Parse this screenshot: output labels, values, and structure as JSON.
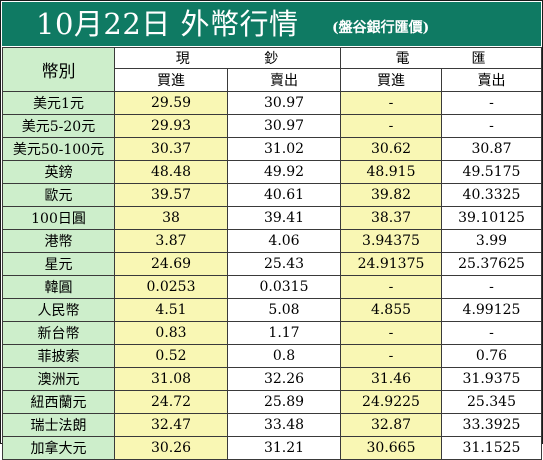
{
  "title": "10月22日 外幣行情",
  "subtitle": "(盤谷銀行匯價)",
  "headers": {
    "currency": "幣別",
    "cash": [
      "現",
      "鈔"
    ],
    "spot": [
      "電",
      "匯"
    ],
    "buy": "買進",
    "sell": "賣出"
  },
  "rows": [
    {
      "name": "美元1元",
      "cash_buy": "29.59",
      "cash_sell": "30.97",
      "spot_buy": "-",
      "spot_sell": "-"
    },
    {
      "name": "美元5-20元",
      "cash_buy": "29.93",
      "cash_sell": "30.97",
      "spot_buy": "-",
      "spot_sell": "-"
    },
    {
      "name": "美元50-100元",
      "cash_buy": "30.37",
      "cash_sell": "31.02",
      "spot_buy": "30.62",
      "spot_sell": "30.87"
    },
    {
      "name": "英鎊",
      "cash_buy": "48.48",
      "cash_sell": "49.92",
      "spot_buy": "48.915",
      "spot_sell": "49.5175"
    },
    {
      "name": "歐元",
      "cash_buy": "39.57",
      "cash_sell": "40.61",
      "spot_buy": "39.82",
      "spot_sell": "40.3325"
    },
    {
      "name": "100日圓",
      "cash_buy": "38",
      "cash_sell": "39.41",
      "spot_buy": "38.37",
      "spot_sell": "39.10125"
    },
    {
      "name": "港幣",
      "cash_buy": "3.87",
      "cash_sell": "4.06",
      "spot_buy": "3.94375",
      "spot_sell": "3.99"
    },
    {
      "name": "星元",
      "cash_buy": "24.69",
      "cash_sell": "25.43",
      "spot_buy": "24.91375",
      "spot_sell": "25.37625"
    },
    {
      "name": "韓圓",
      "cash_buy": "0.0253",
      "cash_sell": "0.0315",
      "spot_buy": "-",
      "spot_sell": "-"
    },
    {
      "name": "人民幣",
      "cash_buy": "4.51",
      "cash_sell": "5.08",
      "spot_buy": "4.855",
      "spot_sell": "4.99125"
    },
    {
      "name": "新台幣",
      "cash_buy": "0.83",
      "cash_sell": "1.17",
      "spot_buy": "-",
      "spot_sell": "-"
    },
    {
      "name": "菲披索",
      "cash_buy": "0.52",
      "cash_sell": "0.8",
      "spot_buy": "-",
      "spot_sell": "0.76"
    },
    {
      "name": "澳洲元",
      "cash_buy": "31.08",
      "cash_sell": "32.26",
      "spot_buy": "31.46",
      "spot_sell": "31.9375"
    },
    {
      "name": "紐西蘭元",
      "cash_buy": "24.72",
      "cash_sell": "25.89",
      "spot_buy": "24.9225",
      "spot_sell": "25.345"
    },
    {
      "name": "瑞士法朗",
      "cash_buy": "32.47",
      "cash_sell": "33.48",
      "spot_buy": "32.87",
      "spot_sell": "33.3925"
    },
    {
      "name": "加拿大元",
      "cash_buy": "30.26",
      "cash_sell": "31.21",
      "spot_buy": "30.665",
      "spot_sell": "31.1525"
    }
  ]
}
